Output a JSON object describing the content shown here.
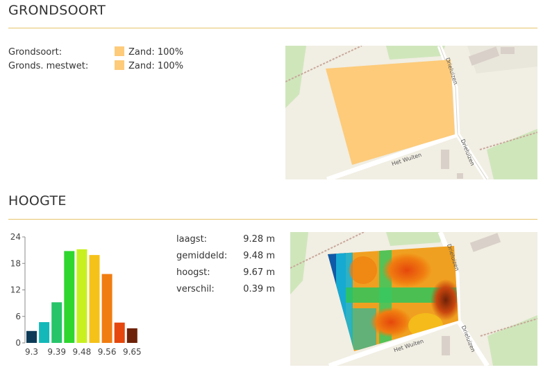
{
  "grondsoort": {
    "title": "GRONDSOORT",
    "rows": [
      {
        "label": "Grondsoort:",
        "value": "Zand: 100%"
      },
      {
        "label": "Gronds. mestwet:",
        "value": "Zand: 100%"
      }
    ],
    "swatch_color": "#fdcb7a",
    "map": {
      "road_label_1": "Het Wuiten",
      "road_label_2": "Drieluizen",
      "road_label_3": "Drieluizen",
      "field_color": "#fdcb7a"
    }
  },
  "hoogte": {
    "title": "HOOGTE",
    "stats": [
      {
        "label": "laagst:",
        "value": "9.28 m"
      },
      {
        "label": "gemiddeld:",
        "value": "9.48 m"
      },
      {
        "label": "hoogst:",
        "value": "9.67 m"
      },
      {
        "label": "verschil:",
        "value": "0.39 m"
      }
    ],
    "map": {
      "road_label_1": "Het Wuiten",
      "road_label_2": "Drieluizen",
      "road_label_3": "Drieluizen"
    }
  },
  "chart_data": {
    "type": "bar",
    "title": "",
    "xlabel": "",
    "ylabel": "",
    "ylim": [
      0,
      24
    ],
    "yticks": [
      0,
      6,
      12,
      18,
      24
    ],
    "xticks": [
      "9.3",
      "9.39",
      "9.48",
      "9.56",
      "9.65"
    ],
    "values": [
      2.7,
      4.7,
      9.2,
      20.8,
      21.2,
      19.9,
      15.6,
      4.6,
      3.3
    ],
    "colors": [
      "#0d3b57",
      "#14b8b8",
      "#27c46a",
      "#2ed62e",
      "#c8f020",
      "#f5c21a",
      "#f07d10",
      "#e5470c",
      "#6e2208"
    ],
    "grid": false,
    "legend": "none"
  }
}
